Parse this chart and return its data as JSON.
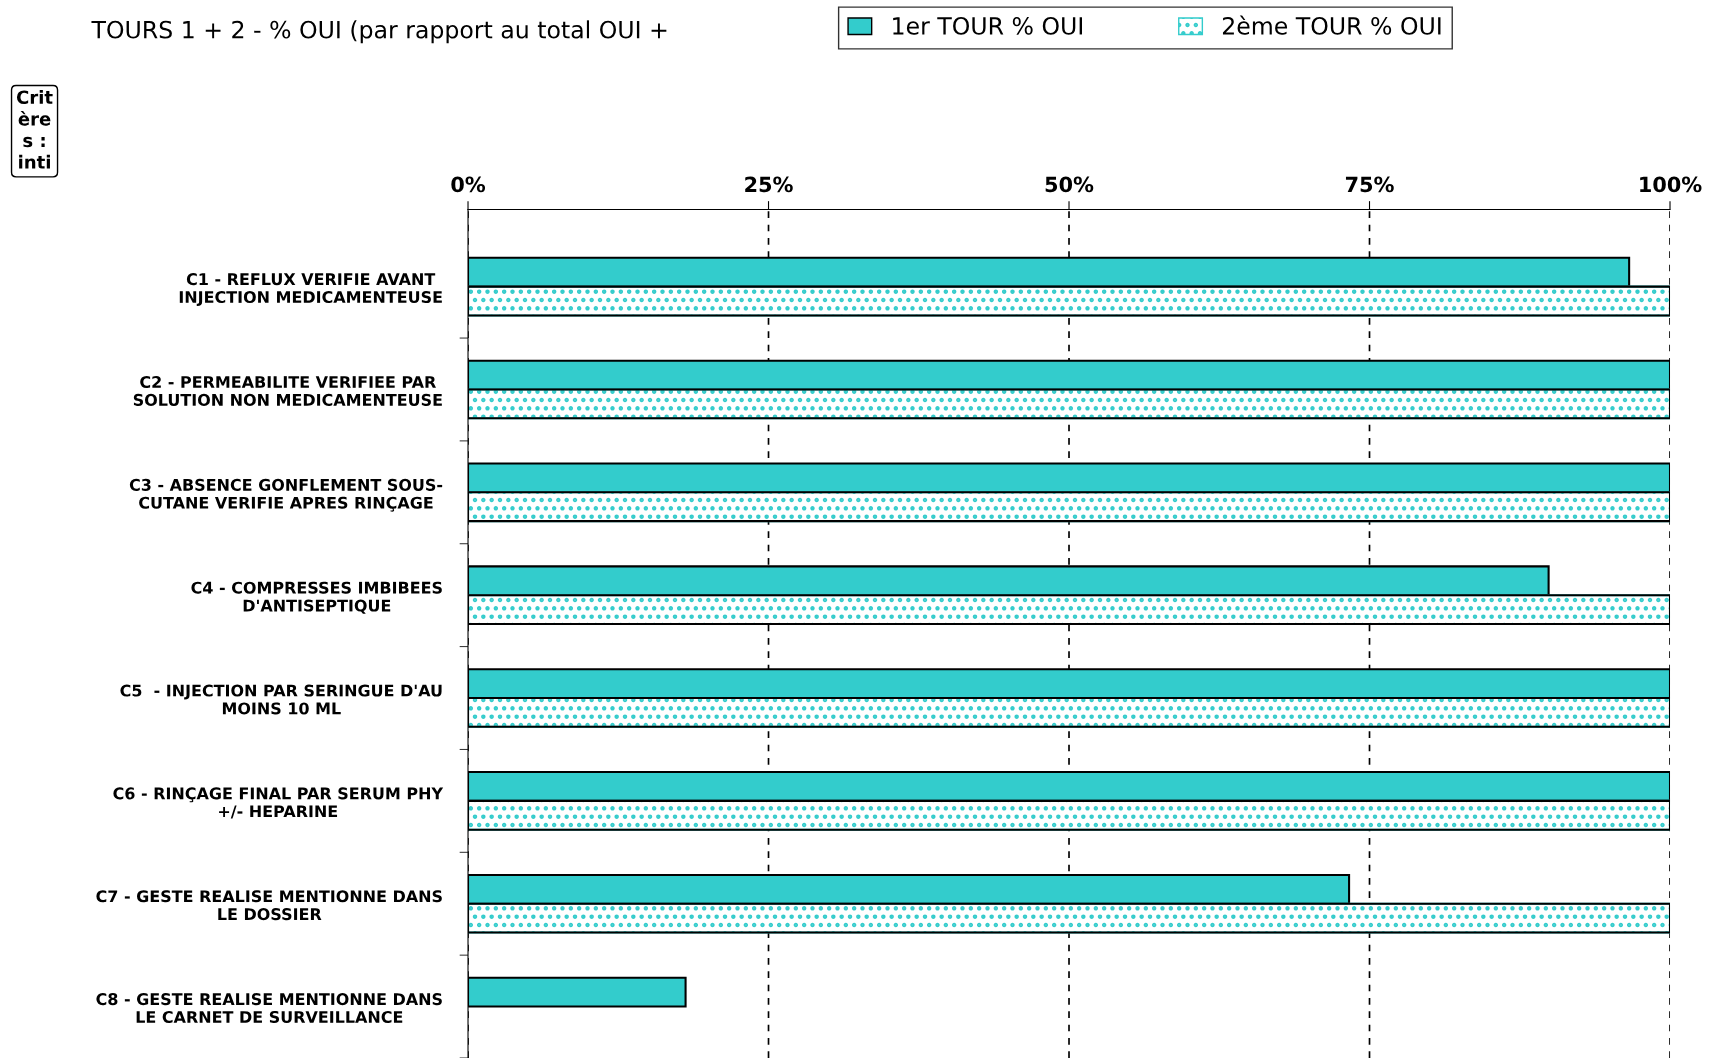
{
  "chart_data": {
    "type": "bar",
    "orientation": "horizontal",
    "title": "TOURS 1 + 2 - % OUI (par rapport au total OUI +",
    "annotations": [
      "Crit\nère\ns :\ninti"
    ],
    "categories": [
      "C1 - REFLUX VERIFIE AVANT\nINJECTION MEDICAMENTEUSE",
      "C2 - PERMEABILITE VERIFIEE PAR\nSOLUTION NON MEDICAMENTEUSE",
      "C3 - ABSENCE GONFLEMENT SOUS-\nCUTANE VERIFIE APRES RINÇAGE",
      "C4 - COMPRESSES IMBIBEES\nD'ANTISEPTIQUE",
      "C5  - INJECTION PAR SERINGUE D'AU\nMOINS 10 ML",
      "C6 - RINÇAGE FINAL PAR SERUM PHY\n+/- HEPARINE",
      "C7 - GESTE REALISE MENTIONNE DANS\nLE DOSSIER",
      "C8 - GESTE REALISE MENTIONNE DANS\nLE CARNET DE SURVEILLANCE"
    ],
    "series": [
      {
        "name": "1er TOUR % OUI",
        "color": "#33cccc",
        "values": [
          96.6,
          100,
          100,
          89.9,
          100,
          100,
          73.3,
          18.1
        ]
      },
      {
        "name": "2ème TOUR % OUI",
        "color": "#33cccc",
        "values": [
          100,
          100,
          100,
          100,
          100,
          100,
          100,
          null
        ]
      }
    ],
    "xlim": [
      0,
      100
    ],
    "xticks": [
      {
        "value": 0,
        "label": "0%"
      },
      {
        "value": 25,
        "label": "25%"
      },
      {
        "value": 50,
        "label": "50%"
      },
      {
        "value": 75,
        "label": "75%"
      },
      {
        "value": 100,
        "label": "100%"
      }
    ],
    "grid": "x",
    "legend": "top right"
  }
}
